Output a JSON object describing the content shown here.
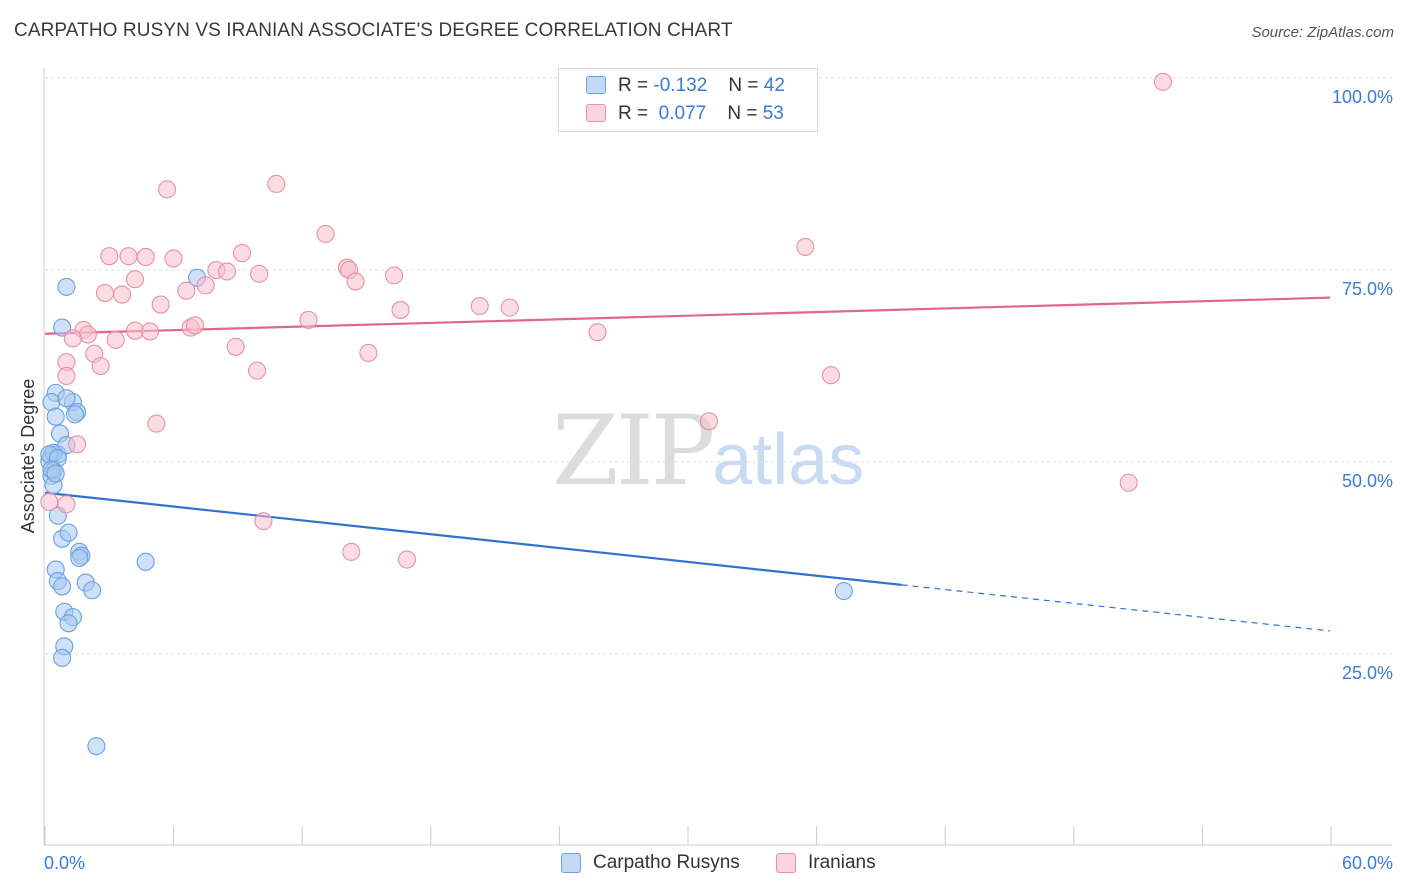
{
  "title": "CARPATHO RUSYN VS IRANIAN ASSOCIATE'S DEGREE CORRELATION CHART",
  "source": "Source: ZipAtlas.com",
  "watermark": {
    "zip": "ZIP",
    "atlas": "atlas"
  },
  "legend": {
    "rows": [
      {
        "r_label": "R =",
        "r_value": "-0.132",
        "n_label": "N =",
        "n_value": "42",
        "color": "#a8c8f0",
        "border": "#6aa0e0"
      },
      {
        "r_label": "R =",
        "r_value": "0.077",
        "n_label": "N =",
        "n_value": "53",
        "color": "#f8c0d0",
        "border": "#e890a8"
      }
    ]
  },
  "bottom_legend": [
    {
      "label": "Carpatho Rusyns",
      "color": "#a8c8f0",
      "border": "#6aa0e0"
    },
    {
      "label": "Iranians",
      "color": "#f8c0d0",
      "border": "#e890a8"
    }
  ],
  "chart_data": {
    "type": "scatter",
    "title": "CARPATHO RUSYN VS IRANIAN ASSOCIATE'S DEGREE CORRELATION CHART",
    "xlabel": "",
    "ylabel": "Associate's Degree",
    "xlim": [
      0,
      60
    ],
    "ylim": [
      0,
      105
    ],
    "x_tick_labels": [
      "0.0%",
      "60.0%"
    ],
    "y_ticks": [
      25,
      50,
      75,
      100
    ],
    "y_tick_labels": [
      "25.0%",
      "50.0%",
      "75.0%",
      "100.0%"
    ],
    "grid": "horizontal dashed",
    "legend_position": "top-center",
    "series": [
      {
        "name": "Carpatho Rusyns",
        "color": "#6aa0e0",
        "fill": "#a8c8f0",
        "trend": {
          "x0": 0,
          "y0": 46.0,
          "x1": 40,
          "y1": 34.0,
          "dash_to_x": 60,
          "dash_to_y": 28.0,
          "color": "#2f72d0"
        },
        "points": [
          [
            0.3,
            50.8
          ],
          [
            0.2,
            50.1
          ],
          [
            0.4,
            48.9
          ],
          [
            0.3,
            48.2
          ],
          [
            0.4,
            47.0
          ],
          [
            0.5,
            59.0
          ],
          [
            0.3,
            57.8
          ],
          [
            0.5,
            55.9
          ],
          [
            0.7,
            53.7
          ],
          [
            0.6,
            51.0
          ],
          [
            0.4,
            51.2
          ],
          [
            1.0,
            52.2
          ],
          [
            1.3,
            57.8
          ],
          [
            1.5,
            56.5
          ],
          [
            1.4,
            56.2
          ],
          [
            0.8,
            67.5
          ],
          [
            1.0,
            72.8
          ],
          [
            1.0,
            58.3
          ],
          [
            0.6,
            43.0
          ],
          [
            0.8,
            40.0
          ],
          [
            1.1,
            40.8
          ],
          [
            1.6,
            38.3
          ],
          [
            1.7,
            37.8
          ],
          [
            1.6,
            37.5
          ],
          [
            0.5,
            36.0
          ],
          [
            0.6,
            34.5
          ],
          [
            0.8,
            33.8
          ],
          [
            1.9,
            34.3
          ],
          [
            2.2,
            33.3
          ],
          [
            0.9,
            30.5
          ],
          [
            1.3,
            29.8
          ],
          [
            1.1,
            29.0
          ],
          [
            0.9,
            26.0
          ],
          [
            0.8,
            24.5
          ],
          [
            2.4,
            13.0
          ],
          [
            4.7,
            37.0
          ],
          [
            7.1,
            74.0
          ],
          [
            37.3,
            33.2
          ],
          [
            0.2,
            51.0
          ],
          [
            0.6,
            50.5
          ],
          [
            0.3,
            49.0
          ],
          [
            0.5,
            48.5
          ]
        ]
      },
      {
        "name": "Iranians",
        "color": "#e890a8",
        "fill": "#f8c0d0",
        "trend": {
          "x0": 0,
          "y0": 66.7,
          "x1": 60,
          "y1": 71.4,
          "color": "#e06690"
        },
        "points": [
          [
            52.2,
            99.5
          ],
          [
            5.7,
            85.5
          ],
          [
            10.8,
            86.2
          ],
          [
            13.1,
            79.7
          ],
          [
            35.5,
            78.0
          ],
          [
            3.0,
            76.8
          ],
          [
            3.9,
            76.8
          ],
          [
            4.7,
            76.7
          ],
          [
            6.0,
            76.5
          ],
          [
            9.2,
            77.2
          ],
          [
            8.0,
            75.0
          ],
          [
            8.5,
            74.8
          ],
          [
            10.0,
            74.5
          ],
          [
            14.1,
            75.3
          ],
          [
            14.2,
            75.0
          ],
          [
            16.3,
            74.3
          ],
          [
            4.2,
            73.8
          ],
          [
            7.5,
            73.0
          ],
          [
            14.5,
            73.5
          ],
          [
            2.8,
            72.0
          ],
          [
            3.6,
            71.8
          ],
          [
            6.6,
            72.3
          ],
          [
            5.4,
            70.5
          ],
          [
            20.3,
            70.3
          ],
          [
            21.7,
            70.1
          ],
          [
            16.6,
            69.8
          ],
          [
            12.3,
            68.5
          ],
          [
            6.8,
            67.5
          ],
          [
            7.0,
            67.8
          ],
          [
            4.2,
            67.1
          ],
          [
            4.9,
            67.0
          ],
          [
            1.8,
            67.2
          ],
          [
            2.0,
            66.6
          ],
          [
            1.3,
            66.1
          ],
          [
            3.3,
            65.9
          ],
          [
            25.8,
            66.9
          ],
          [
            8.9,
            65.0
          ],
          [
            15.1,
            64.2
          ],
          [
            2.3,
            64.1
          ],
          [
            1.0,
            63.0
          ],
          [
            2.6,
            62.5
          ],
          [
            1.0,
            61.2
          ],
          [
            9.9,
            61.9
          ],
          [
            36.7,
            61.3
          ],
          [
            5.2,
            55.0
          ],
          [
            31.0,
            55.3
          ],
          [
            1.5,
            52.3
          ],
          [
            1.0,
            44.5
          ],
          [
            50.6,
            47.3
          ],
          [
            10.2,
            42.3
          ],
          [
            14.3,
            38.3
          ],
          [
            16.9,
            37.3
          ],
          [
            0.2,
            44.8
          ]
        ]
      }
    ]
  }
}
